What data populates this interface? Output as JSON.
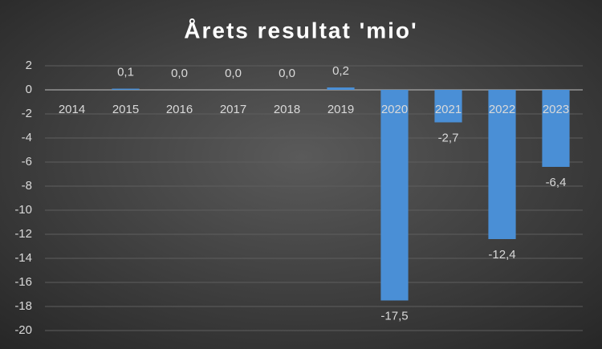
{
  "chart_data": {
    "type": "bar",
    "title": "Årets resultat 'mio'",
    "categories": [
      "2014",
      "2015",
      "2016",
      "2017",
      "2018",
      "2019",
      "2020",
      "2021",
      "2022",
      "2023"
    ],
    "values": [
      null,
      0.1,
      0.0,
      0.0,
      0.0,
      0.2,
      -17.5,
      -2.7,
      -12.4,
      -6.4
    ],
    "value_labels": [
      null,
      "0,1",
      "0,0",
      "0,0",
      "0,0",
      "0,2",
      "-17,5",
      "-2,7",
      "-12,4",
      "-6,4"
    ],
    "color": "#4a8fd6",
    "ylim": [
      -20,
      2
    ],
    "yticks": [
      2,
      0,
      -2,
      -4,
      -6,
      -8,
      -10,
      -12,
      -14,
      -16,
      -18,
      -20
    ],
    "grid": true
  }
}
